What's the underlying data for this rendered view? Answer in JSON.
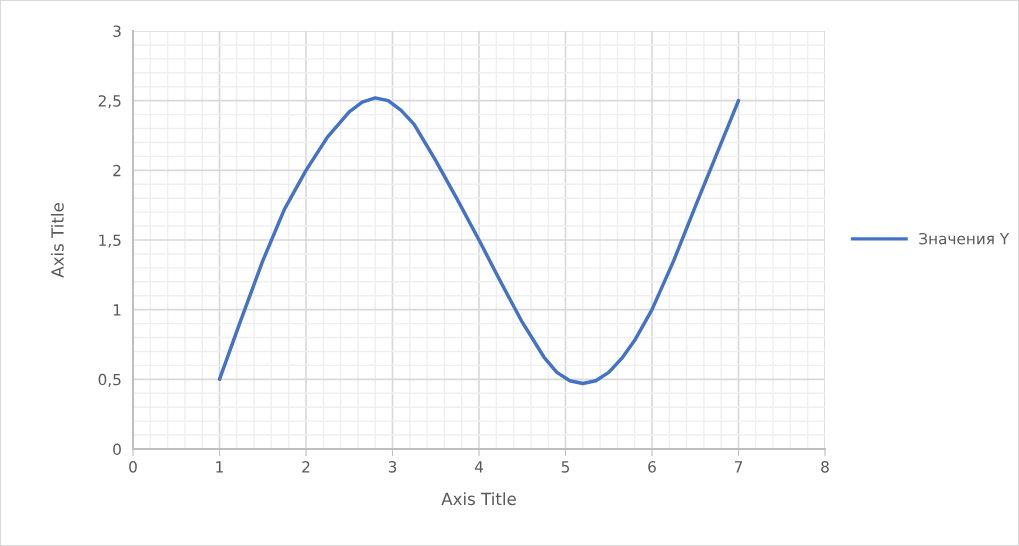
{
  "chart_data": {
    "type": "line",
    "xlabel": "Axis Title",
    "ylabel": "Axis Title",
    "x": [
      1,
      1.25,
      1.5,
      1.75,
      2,
      2.25,
      2.5,
      2.65,
      2.8,
      2.95,
      3.1,
      3.25,
      3.5,
      3.75,
      4,
      4.25,
      4.5,
      4.75,
      4.9,
      5.05,
      5.2,
      5.35,
      5.5,
      5.65,
      5.8,
      6,
      6.25,
      6.5,
      6.75,
      7
    ],
    "series": [
      {
        "name": "Значения Y",
        "color": "#4472c4",
        "values": [
          0.5,
          0.93,
          1.35,
          1.72,
          2.0,
          2.24,
          2.42,
          2.49,
          2.52,
          2.5,
          2.43,
          2.33,
          2.07,
          1.79,
          1.5,
          1.2,
          0.91,
          0.66,
          0.55,
          0.49,
          0.47,
          0.49,
          0.55,
          0.65,
          0.78,
          1.0,
          1.35,
          1.74,
          2.12,
          2.5
        ]
      }
    ],
    "xlim": [
      0,
      8
    ],
    "xticks": [
      0,
      1,
      2,
      3,
      4,
      5,
      6,
      7,
      8
    ],
    "ylim": [
      0,
      3
    ],
    "yticks": [
      0,
      {
        "value": 0.5,
        "label": "0,5"
      },
      1,
      {
        "value": 1.5,
        "label": "1,5"
      },
      2,
      {
        "value": 2.5,
        "label": "2,5"
      },
      3
    ],
    "grid": true,
    "legend": "right",
    "marker": "none",
    "line_style": "solid"
  }
}
